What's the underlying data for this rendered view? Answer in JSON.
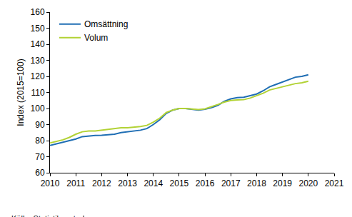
{
  "chart_data": {
    "type": "line",
    "y_label": "Index (2015=100)",
    "source": "Källa: Statistikcentralen",
    "x": [
      2010,
      2010.25,
      2010.5,
      2010.75,
      2011,
      2011.25,
      2011.5,
      2011.75,
      2012,
      2012.25,
      2012.5,
      2012.75,
      2013,
      2013.25,
      2013.5,
      2013.75,
      2014,
      2014.25,
      2014.5,
      2014.75,
      2015,
      2015.25,
      2015.5,
      2015.75,
      2016,
      2016.25,
      2016.5,
      2016.75,
      2017,
      2017.25,
      2017.5,
      2017.75,
      2018,
      2018.25,
      2018.5,
      2018.75,
      2019,
      2019.25,
      2019.5,
      2019.75,
      2020
    ],
    "series": [
      {
        "name": "Omsättning",
        "color": "#1f6eb4",
        "values": [
          77,
          78,
          79,
          80,
          81,
          82.5,
          83,
          83.2,
          83.3,
          83.5,
          84,
          85,
          85.5,
          85.8,
          86.5,
          87.5,
          90,
          93,
          97,
          99,
          100,
          100,
          99.5,
          99,
          99.5,
          100.5,
          102,
          104.5,
          106,
          106.8,
          107,
          108,
          109,
          111,
          113.5,
          115,
          116.5,
          118,
          119.5,
          120,
          121
        ]
      },
      {
        "name": "Volum",
        "color": "#b2d235",
        "values": [
          78.5,
          79.5,
          80.5,
          82,
          84,
          85.5,
          86,
          86,
          86.5,
          86.8,
          87.5,
          88,
          88,
          88.3,
          88.8,
          89.5,
          91.5,
          94,
          97.5,
          99,
          100,
          100,
          99.5,
          99.3,
          99.8,
          101,
          102.5,
          104,
          105,
          105.3,
          105.5,
          106.5,
          108,
          109.5,
          111.5,
          112.5,
          113.5,
          114.5,
          115.5,
          116,
          117
        ]
      }
    ],
    "xlim": [
      2010,
      2021
    ],
    "xticks": [
      2010,
      2011,
      2012,
      2013,
      2014,
      2015,
      2016,
      2017,
      2018,
      2019,
      2020,
      2021
    ],
    "ylim": [
      60,
      160
    ],
    "yticks": [
      60,
      70,
      80,
      90,
      100,
      110,
      120,
      130,
      140,
      150,
      160
    ],
    "grid": false,
    "legend": "top-left"
  }
}
